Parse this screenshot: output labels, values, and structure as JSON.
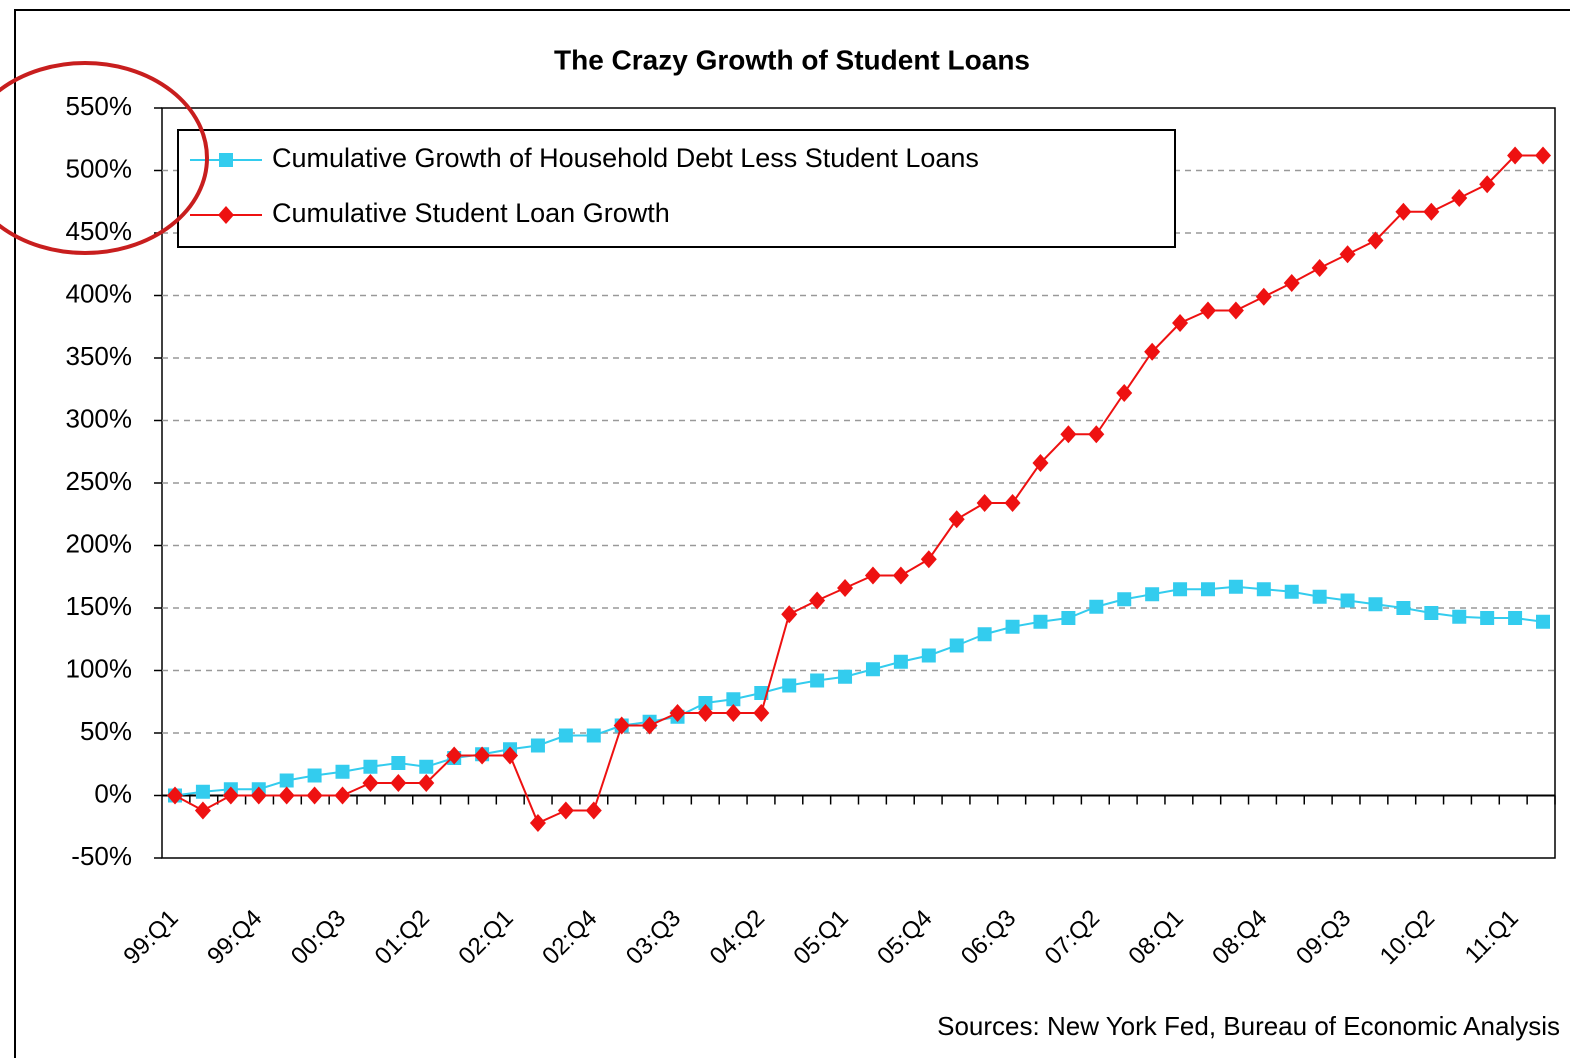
{
  "chart_data": {
    "type": "line",
    "title": "The Crazy Growth of Student Loans",
    "source": "Sources: New York Fed, Bureau of Economic Analysis",
    "categories": [
      "99:Q1",
      null,
      null,
      "99:Q4",
      null,
      null,
      "00:Q3",
      null,
      null,
      "01:Q2",
      null,
      null,
      "02:Q1",
      null,
      null,
      "02:Q4",
      null,
      null,
      "03:Q3",
      null,
      null,
      "04:Q2",
      null,
      null,
      "05:Q1",
      null,
      null,
      "05:Q4",
      null,
      null,
      "06:Q3",
      null,
      null,
      "07:Q2",
      null,
      null,
      "08:Q1",
      null,
      null,
      "08:Q4",
      null,
      null,
      "09:Q3",
      null,
      null,
      "10:Q2",
      null,
      null,
      "11:Q1",
      null
    ],
    "series": [
      {
        "name": "Cumulative Growth of Household Debt Less Student Loans",
        "color": "#33ccee",
        "marker": "square",
        "values": [
          0,
          3,
          5,
          5,
          12,
          16,
          19,
          23,
          26,
          23,
          30,
          33,
          37,
          40,
          48,
          48,
          56,
          59,
          63,
          74,
          77,
          82,
          88,
          92,
          95,
          101,
          107,
          112,
          120,
          129,
          135,
          139,
          142,
          151,
          157,
          161,
          165,
          165,
          167,
          165,
          163,
          159,
          156,
          153,
          150,
          146,
          143,
          142,
          142,
          139
        ]
      },
      {
        "name": "Cumulative Student Loan Growth",
        "color": "#ee1111",
        "marker": "diamond",
        "values": [
          0,
          -12,
          0,
          0,
          0,
          0,
          0,
          10,
          10,
          10,
          32,
          32,
          32,
          -22,
          -12,
          -12,
          56,
          56,
          66,
          66,
          66,
          66,
          145,
          156,
          166,
          176,
          176,
          189,
          221,
          234,
          234,
          266,
          289,
          289,
          322,
          355,
          378,
          388,
          388,
          399,
          410,
          422,
          433,
          444,
          467,
          467,
          478,
          489,
          512,
          512
        ]
      }
    ],
    "ylim": [
      -50,
      550
    ],
    "yticks": [
      {
        "value": -50,
        "label": "-50%"
      },
      {
        "value": 0,
        "label": "0%"
      },
      {
        "value": 50,
        "label": "50%"
      },
      {
        "value": 100,
        "label": "100%"
      },
      {
        "value": 150,
        "label": "150%"
      },
      {
        "value": 200,
        "label": "200%"
      },
      {
        "value": 250,
        "label": "250%"
      },
      {
        "value": 300,
        "label": "300%"
      },
      {
        "value": 350,
        "label": "350%"
      },
      {
        "value": 400,
        "label": "400%"
      },
      {
        "value": 450,
        "label": "450%"
      },
      {
        "value": 500,
        "label": "500%"
      },
      {
        "value": 550,
        "label": "550%"
      }
    ],
    "grid": true
  }
}
